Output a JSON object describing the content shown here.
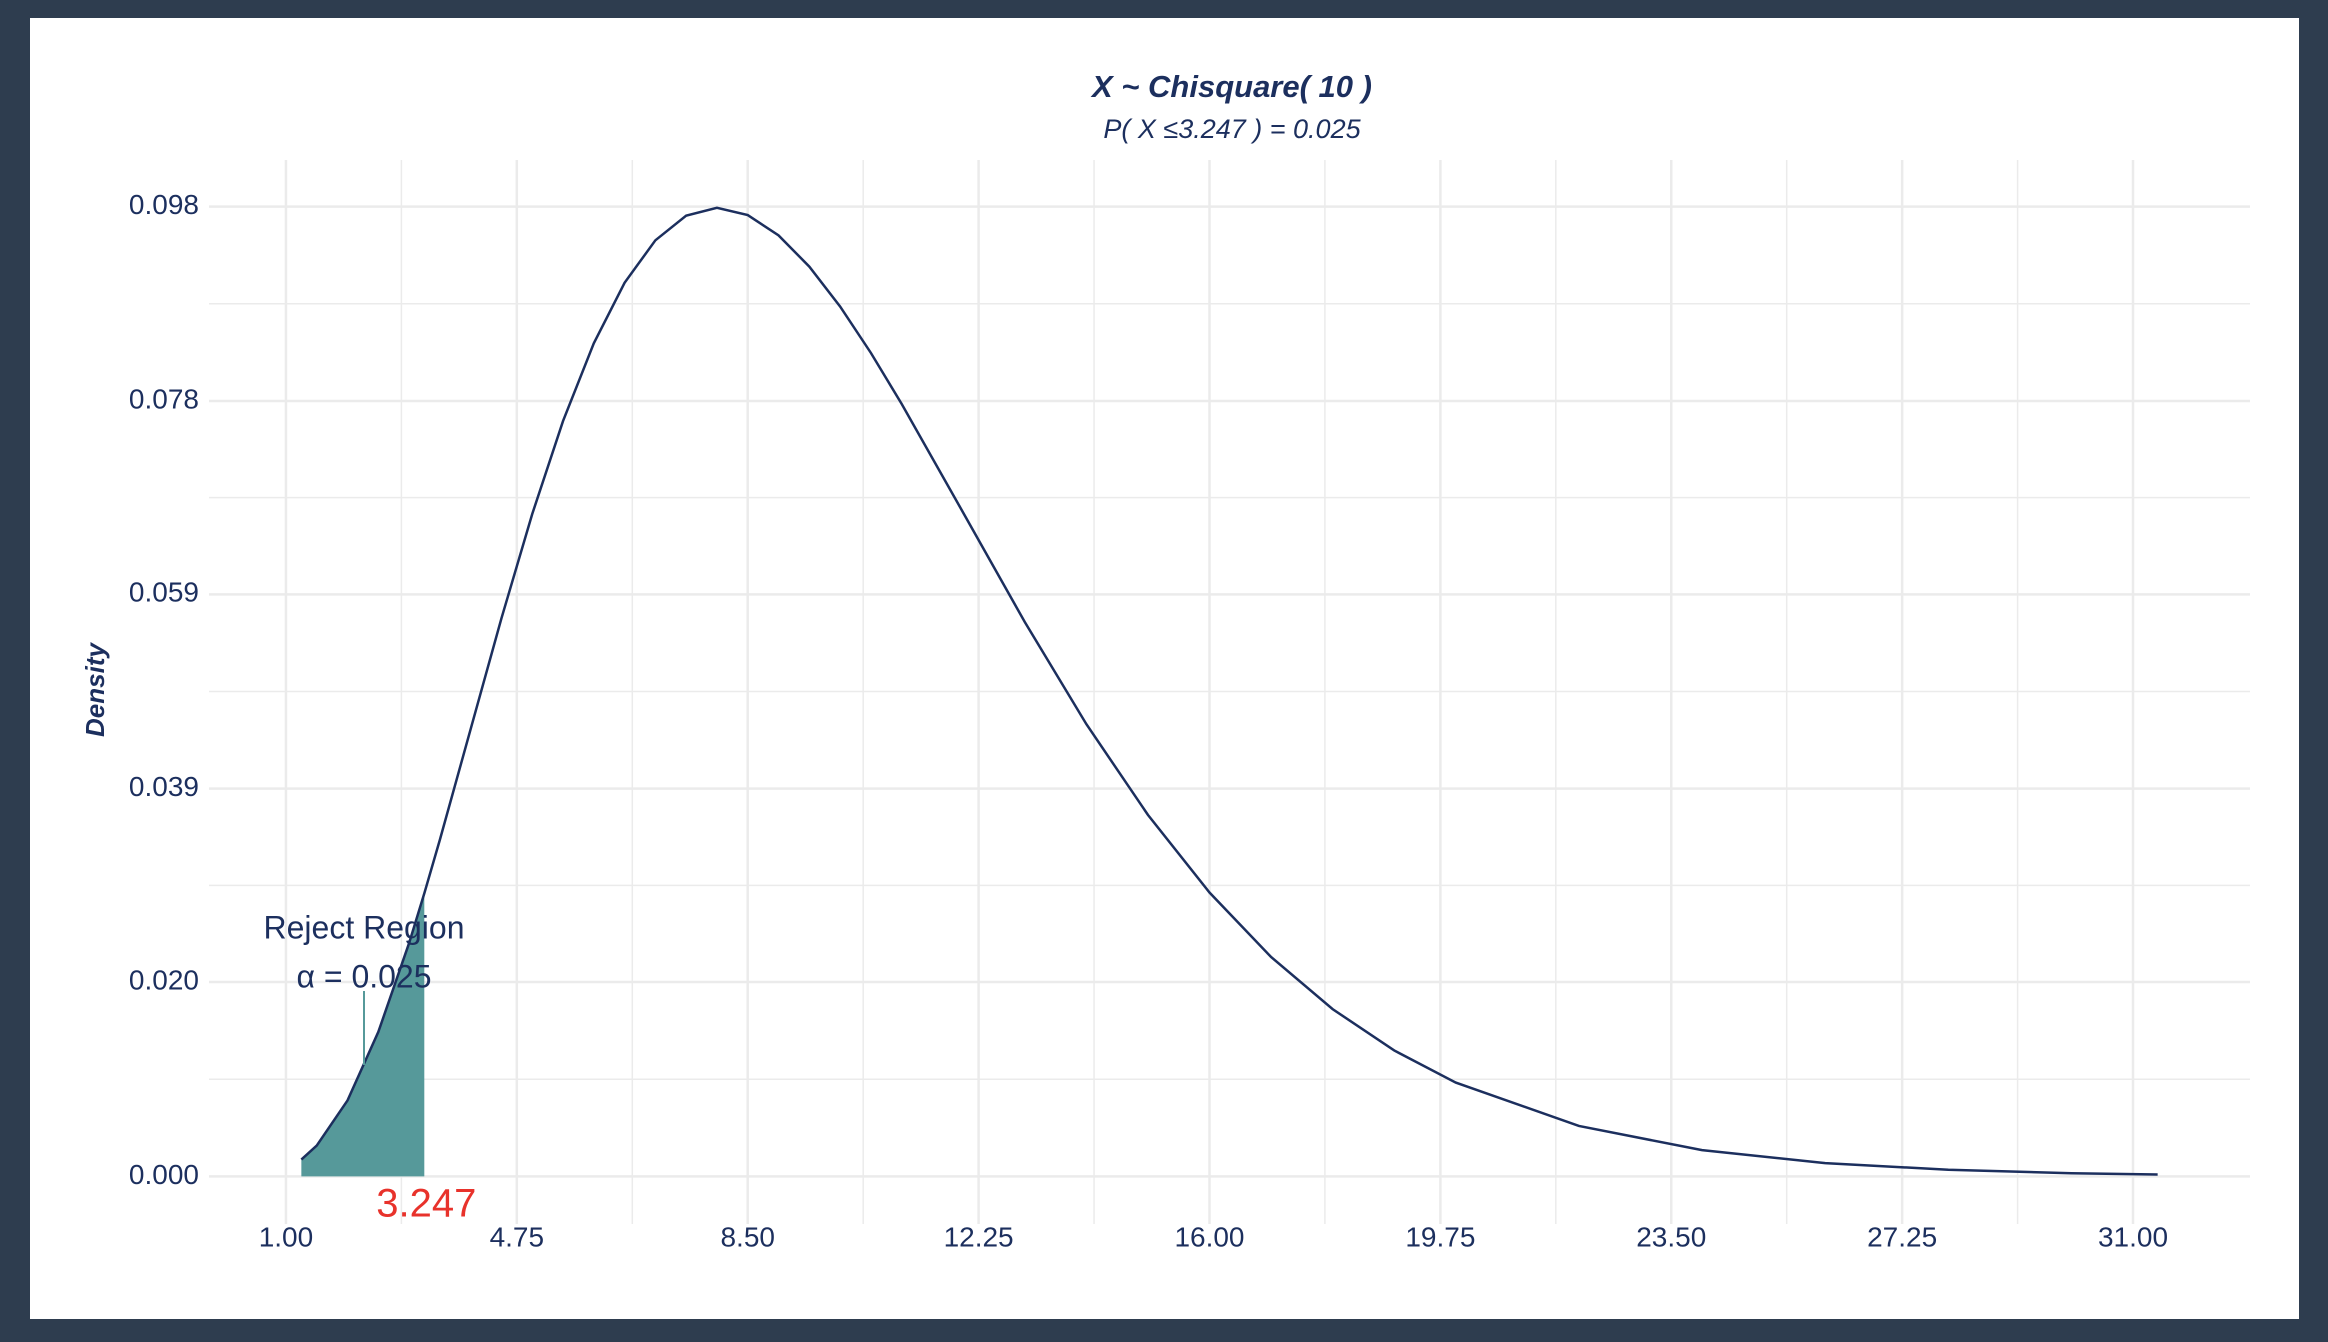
{
  "chart_data": {
    "type": "line",
    "title": "X ~ Chisquare( 10 )",
    "subtitle": "P( X ≤3.247 ) = 0.025",
    "y_label": "Density",
    "x": [
      1.25,
      1.5,
      2,
      2.5,
      3,
      3.247,
      3.5,
      4,
      4.5,
      5,
      5.5,
      6,
      6.5,
      7,
      7.5,
      8,
      8.5,
      9,
      9.5,
      10,
      10.5,
      11,
      12,
      13,
      14,
      15,
      16,
      17,
      18,
      19,
      20,
      22,
      24,
      26,
      28,
      30,
      31.4
    ],
    "series": [
      {
        "name": "density",
        "color": "#1c2f5e",
        "values": [
          0.0017,
          0.00311,
          0.00766,
          0.01457,
          0.02353,
          0.02854,
          0.03395,
          0.04511,
          0.05628,
          0.0668,
          0.07617,
          0.08402,
          0.09012,
          0.0944,
          0.09689,
          0.09768,
          0.09695,
          0.0949,
          0.09175,
          0.08773,
          0.08305,
          0.07791,
          0.06693,
          0.05591,
          0.04561,
          0.03646,
          0.02863,
          0.02213,
          0.01687,
          0.0127,
          0.00946,
          0.00509,
          0.00265,
          0.00134,
          0.00067,
          0.00032,
          0.00019
        ]
      }
    ],
    "shade": {
      "to": 3.247,
      "color": "#56999a"
    },
    "critical_value": 3.247,
    "annotations": [
      "Reject Region",
      "α = 0.025"
    ],
    "xlim": [
      -0.25,
      32.9
    ],
    "xticks": [
      {
        "value": 1,
        "label": "1.00"
      },
      {
        "value": 4.75,
        "label": "4.75"
      },
      {
        "value": 8.5,
        "label": "8.50"
      },
      {
        "value": 12.25,
        "label": "12.25"
      },
      {
        "value": 16,
        "label": "16.00"
      },
      {
        "value": 19.75,
        "label": "19.75"
      },
      {
        "value": 23.5,
        "label": "23.50"
      },
      {
        "value": 27.25,
        "label": "27.25"
      },
      {
        "value": 31,
        "label": "31.00"
      }
    ],
    "ylim": [
      -0.0048,
      0.1025
    ],
    "yticks": [
      {
        "value": 0,
        "label": "0.000"
      },
      {
        "value": 0.0196,
        "label": "0.020"
      },
      {
        "value": 0.0391,
        "label": "0.039"
      },
      {
        "value": 0.0587,
        "label": "0.059"
      },
      {
        "value": 0.0782,
        "label": "0.078"
      },
      {
        "value": 0.0978,
        "label": "0.098"
      }
    ],
    "grid": true
  }
}
